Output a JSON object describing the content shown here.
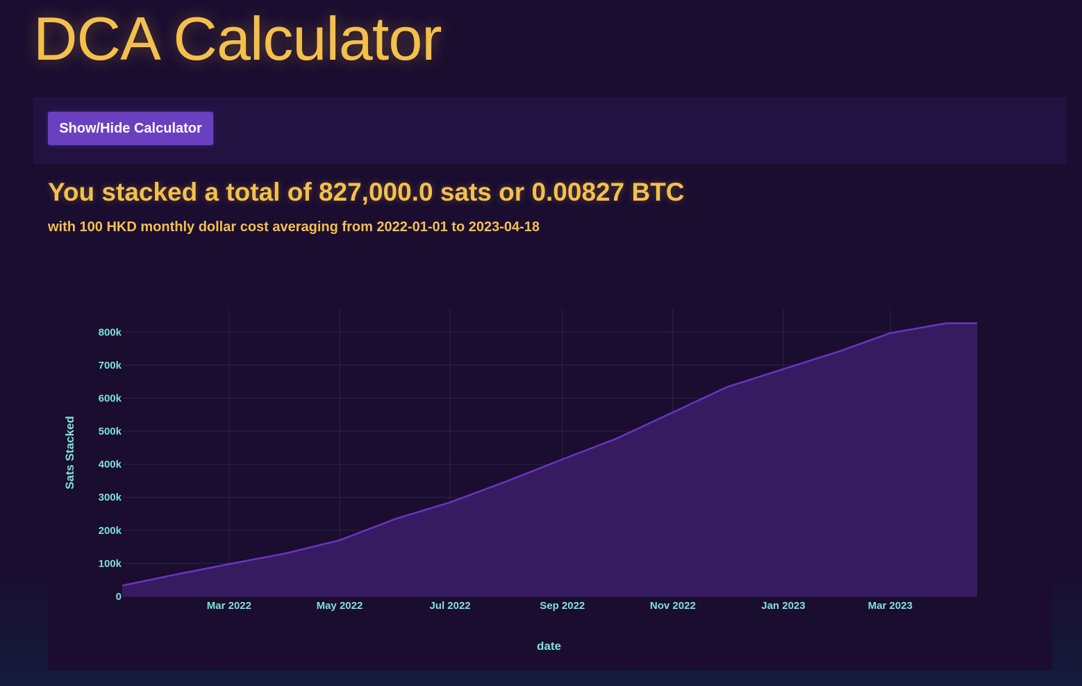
{
  "app": {
    "title": "DCA Calculator"
  },
  "toolbar": {
    "toggle_label": "Show/Hide Calculator"
  },
  "result": {
    "summary": "You stacked a total of 827,000.0 sats or 0.00827 BTC",
    "subtitle": "with 100 HKD monthly dollar cost averaging from 2022-01-01 to 2023-04-18"
  },
  "colors": {
    "accent": "#f4c04c",
    "button": "#6a3fc0",
    "line": "#6a35c2",
    "fill": "#3a1c66",
    "axis_text": "#7fe3d6",
    "grid": "#2a2450"
  },
  "chart_data": {
    "type": "area",
    "xlabel": "date",
    "ylabel": "Sats Stacked",
    "x_ticks": [
      "2022-03-01",
      "2022-05-01",
      "2022-07-01",
      "2022-09-01",
      "2022-11-01",
      "2023-01-01",
      "2023-03-01"
    ],
    "x_tick_labels": [
      "Mar 2022",
      "May 2022",
      "Jul 2022",
      "Sep 2022",
      "Nov 2022",
      "Jan 2023",
      "Mar 2023"
    ],
    "y_ticks": [
      0,
      100000,
      200000,
      300000,
      400000,
      500000,
      600000,
      700000,
      800000
    ],
    "y_tick_labels": [
      "0",
      "100k",
      "200k",
      "300k",
      "400k",
      "500k",
      "600k",
      "700k",
      "800k"
    ],
    "xlim": [
      "2022-01-01",
      "2023-04-18"
    ],
    "ylim": [
      0,
      870000
    ],
    "grid": true,
    "series": [
      {
        "x": [
          "2022-01-01",
          "2022-02-01",
          "2022-03-01",
          "2022-04-01",
          "2022-05-01",
          "2022-06-01",
          "2022-07-01",
          "2022-08-01",
          "2022-09-01",
          "2022-10-01",
          "2022-11-01",
          "2022-12-01",
          "2023-01-01",
          "2023-02-01",
          "2023-03-01",
          "2023-04-01",
          "2023-04-18"
        ],
        "values": [
          33000,
          68000,
          98000,
          130000,
          170000,
          235000,
          285000,
          348000,
          415000,
          478000,
          557000,
          634000,
          688000,
          742000,
          797000,
          827000,
          827000
        ]
      }
    ]
  }
}
